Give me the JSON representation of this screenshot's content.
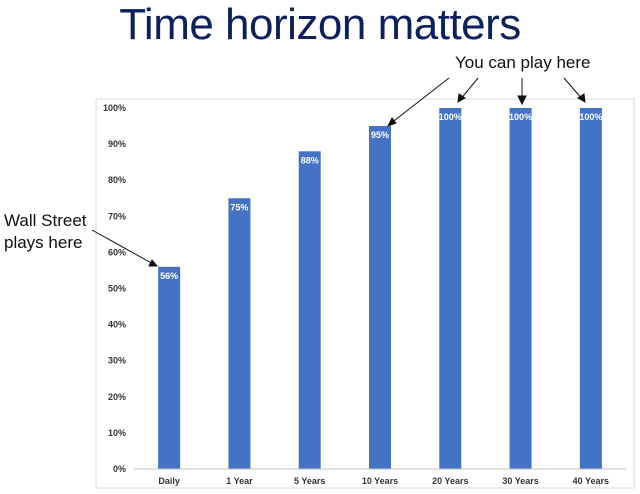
{
  "slide": {
    "title": "Time horizon matters",
    "note_right": "You can play here",
    "note_left": "Wall Street\nplays here"
  },
  "colors": {
    "bar": "#4472c4",
    "title": "#0d1f5c",
    "frame": "#d9d9d9"
  },
  "chart_data": {
    "type": "bar",
    "categories": [
      "Daily",
      "1 Year",
      "5 Years",
      "10 Years",
      "20 Years",
      "30 Years",
      "40 Years"
    ],
    "values": [
      56,
      75,
      88,
      95,
      100,
      100,
      100
    ],
    "data_labels": [
      "56%",
      "75%",
      "88%",
      "95%",
      "100%",
      "100%",
      "100%"
    ],
    "yticks": [
      "0%",
      "10%",
      "20%",
      "30%",
      "40%",
      "50%",
      "60%",
      "70%",
      "80%",
      "90%",
      "100%"
    ],
    "ylim": [
      0,
      100
    ],
    "grid": false,
    "legend": "none"
  }
}
